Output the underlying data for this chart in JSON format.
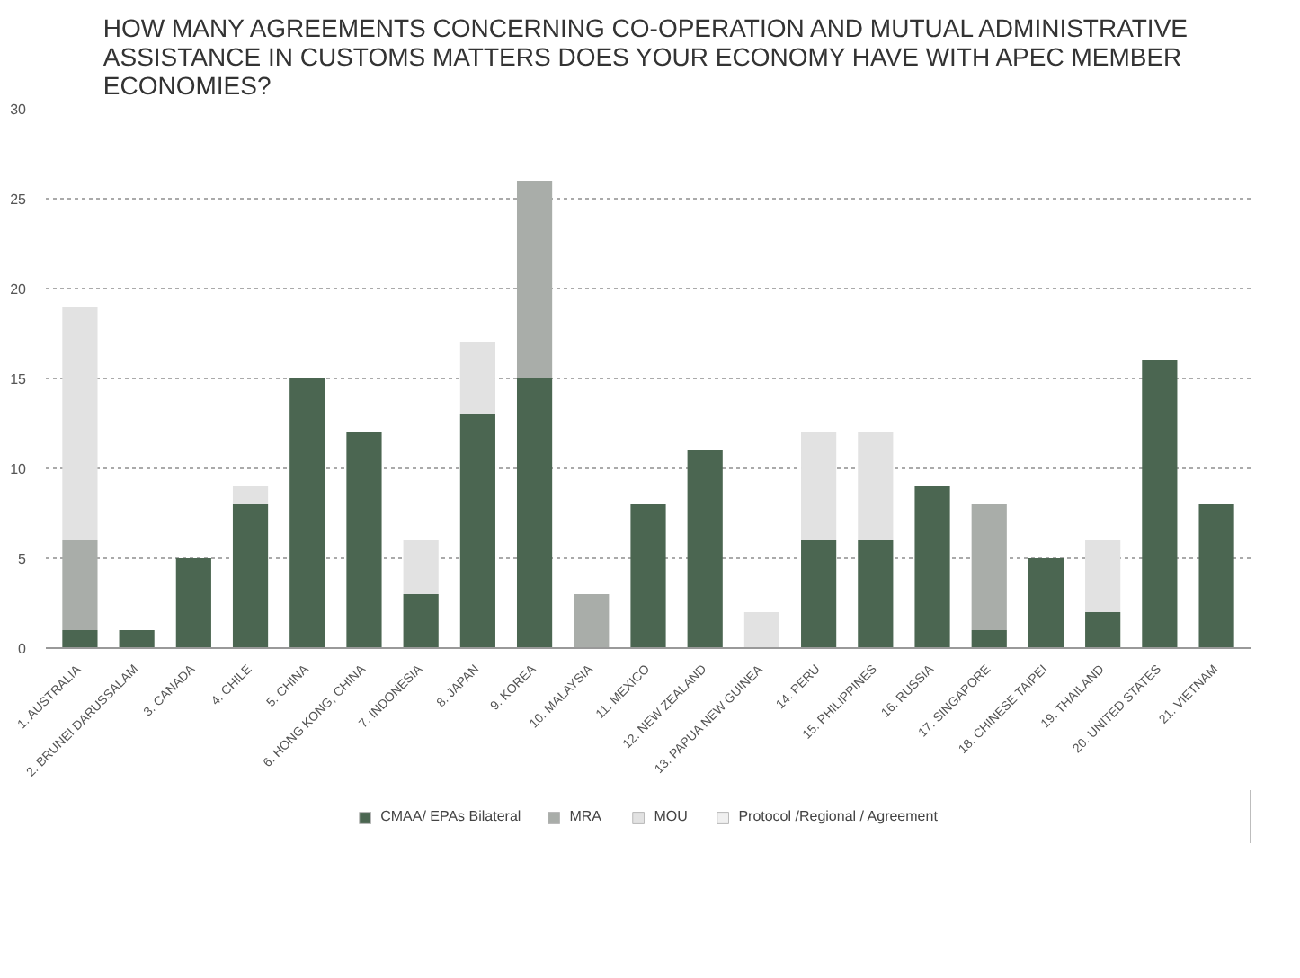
{
  "chart_data": {
    "type": "bar",
    "stacked": true,
    "title": "HOW MANY AGREEMENTS CONCERNING CO-OPERATION AND MUTUAL ADMINISTRATIVE ASSISTANCE IN CUSTOMS MATTERS DOES YOUR ECONOMY HAVE WITH APEC MEMBER ECONOMIES?",
    "categories": [
      "1. AUSTRALIA",
      "2. BRUNEI DARUSSALAM",
      "3. CANADA",
      "4. CHILE",
      "5. CHINA",
      "6. HONG KONG, CHINA",
      "7. INDONESIA",
      "8. JAPAN",
      "9. KOREA",
      "10. MALAYSIA",
      "11. MEXICO",
      "12. NEW ZEALAND",
      "13. PAPUA NEW GUINEA",
      "14. PERU",
      "15. PHILIPPINES",
      "16. RUSSIA",
      "17. SINGAPORE",
      "18. CHINESE TAIPEI",
      "19. THAILAND",
      "20. UNITED STATES",
      "21. VIETNAM"
    ],
    "series": [
      {
        "name": "CMAA/ EPAs Bilateral",
        "color": "#4b6651",
        "values": [
          1,
          1,
          5,
          8,
          15,
          12,
          3,
          13,
          15,
          0,
          8,
          11,
          0,
          6,
          6,
          9,
          1,
          5,
          2,
          16,
          8
        ]
      },
      {
        "name": "MRA",
        "color": "#a9ada9",
        "values": [
          5,
          0,
          0,
          0,
          0,
          0,
          0,
          0,
          11,
          3,
          0,
          0,
          0,
          0,
          0,
          0,
          7,
          0,
          0,
          0,
          0
        ]
      },
      {
        "name": "MOU",
        "color": "#e2e2e2",
        "values": [
          13,
          0,
          0,
          1,
          0,
          0,
          3,
          4,
          0,
          0,
          0,
          0,
          2,
          6,
          6,
          0,
          0,
          0,
          4,
          0,
          0
        ]
      },
      {
        "name": "Protocol /Regional / Agreement",
        "color": "#f0f0f0",
        "values": [
          0,
          0,
          0,
          0,
          0,
          0,
          0,
          0,
          0,
          0,
          0,
          0,
          0,
          0,
          0,
          0,
          0,
          0,
          0,
          0,
          0
        ]
      }
    ],
    "ylim": [
      0,
      30
    ],
    "yticks": [
      0,
      5,
      10,
      15,
      20,
      25,
      30
    ],
    "grid": "y",
    "legend": "bottom"
  }
}
